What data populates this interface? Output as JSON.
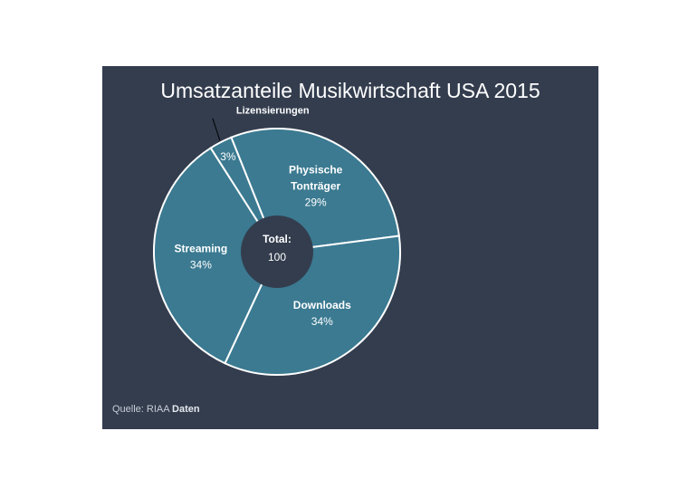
{
  "chart_data": {
    "type": "pie",
    "title": "Umsatzanteile Musikwirtschaft USA 2015",
    "categories": [
      "Streaming",
      "Lizensierungen",
      "Physische Tonträger",
      "Downloads"
    ],
    "values": [
      34,
      3,
      29,
      34
    ],
    "value_labels": [
      "34%",
      "3%",
      "29%",
      "34%"
    ],
    "center_label": "Total:",
    "center_value": "100",
    "donut": true,
    "colors": {
      "slice": "#3b7a91",
      "stroke": "#ffffff",
      "center": "#333d4e",
      "background": "#333d4e"
    },
    "legend": "none"
  },
  "source": {
    "label": "Quelle: RIAA",
    "name": "Daten"
  }
}
